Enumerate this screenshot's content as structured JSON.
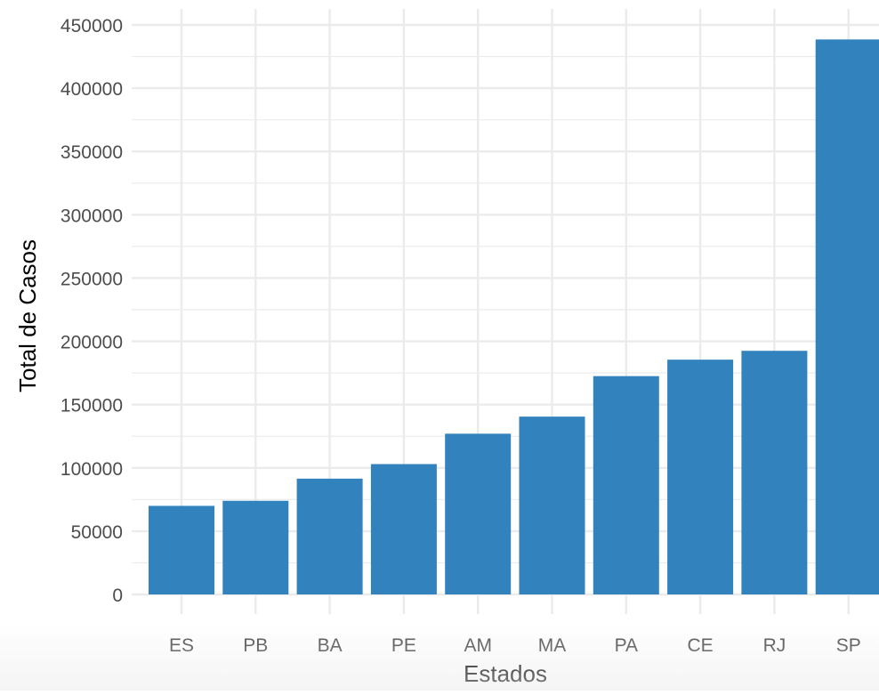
{
  "chart_data": {
    "type": "bar",
    "title": "",
    "xlabel": "Estados",
    "ylabel": "Total de Casos",
    "categories": [
      "ES",
      "PB",
      "BA",
      "PE",
      "AM",
      "MA",
      "PA",
      "CE",
      "RJ",
      "SP"
    ],
    "values": [
      70000,
      74000,
      91500,
      103000,
      127000,
      140500,
      172500,
      185500,
      192500,
      438500
    ],
    "ylim": [
      0,
      450000
    ],
    "yticks": [
      "0",
      "50000",
      "100000",
      "150000",
      "200000",
      "250000",
      "300000",
      "350000",
      "400000",
      "450000"
    ],
    "grid": true,
    "legend": "none",
    "bar_color": "#3182bd",
    "grid_color": "#ebebeb",
    "text_color": "#4d4d4d",
    "label_color": "#000000"
  }
}
